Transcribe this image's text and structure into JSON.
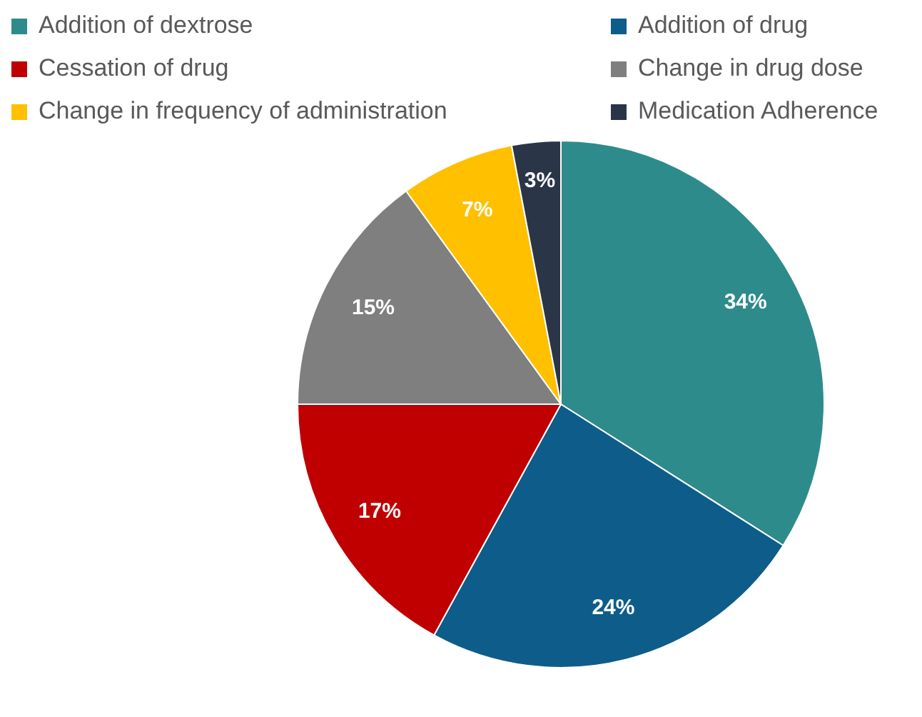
{
  "chart_data": {
    "type": "pie",
    "categories": [
      "Addition of dextrose",
      "Addition of drug",
      "Cessation of  drug",
      "Change in drug dose",
      "Change in frequency of administration",
      "Medication Adherence"
    ],
    "values": [
      34,
      24,
      17,
      15,
      7,
      3
    ],
    "colors": [
      "#2e8b8b",
      "#0e5c8a",
      "#c00000",
      "#7f7f7f",
      "#ffc000",
      "#2b3548"
    ],
    "value_labels": [
      "34%",
      "24%",
      "17%",
      "15%",
      "7%",
      "3%"
    ],
    "legend": "top"
  }
}
